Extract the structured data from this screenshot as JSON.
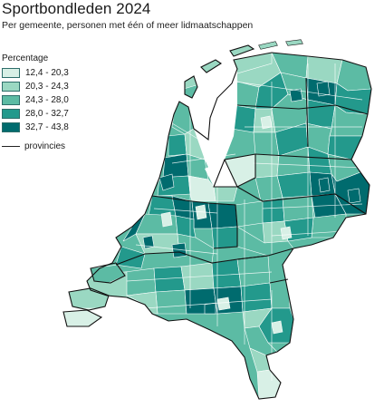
{
  "title": "Sportbondleden 2024",
  "subtitle": "Per gemeente, personen met één of meer lidmaatschappen",
  "legend": {
    "title": "Percentage",
    "classes": [
      {
        "label": "12,4 - 20,3",
        "color": "#d8f0e6"
      },
      {
        "label": "20,3 - 24,3",
        "color": "#9ad8c2"
      },
      {
        "label": "24,3 - 28,0",
        "color": "#5cbba4"
      },
      {
        "label": "28,0 - 32,7",
        "color": "#23998c"
      },
      {
        "label": "32,7 - 43,8",
        "color": "#006b6e"
      }
    ],
    "provinces_label": "provincies"
  },
  "colors": {
    "water": "#ffffff",
    "border": "#ffffff",
    "province_line": "#111111"
  }
}
